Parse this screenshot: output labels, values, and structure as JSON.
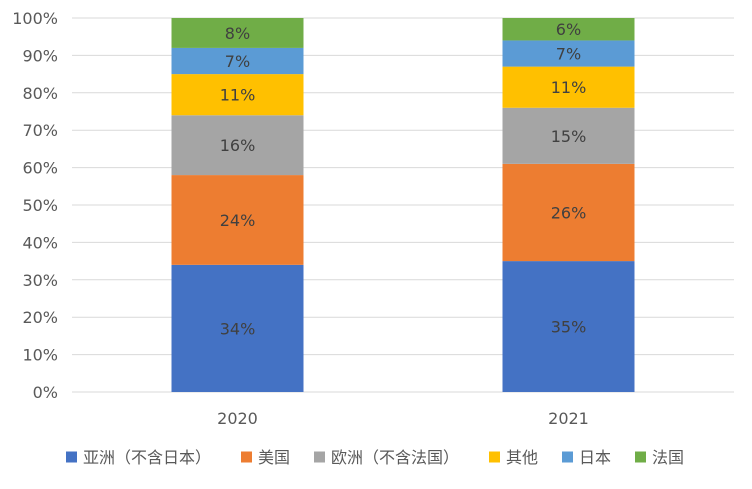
{
  "chart_data": {
    "type": "bar",
    "stacked": true,
    "percent": true,
    "categories": [
      "2020",
      "2021"
    ],
    "series": [
      {
        "name": "亚洲（不含日本）",
        "color": "#4472C4",
        "values": [
          34,
          35
        ]
      },
      {
        "name": "美国",
        "color": "#ED7D31",
        "values": [
          24,
          26
        ]
      },
      {
        "name": "欧洲（不含法国）",
        "color": "#A5A5A5",
        "values": [
          16,
          15
        ]
      },
      {
        "name": "其他",
        "color": "#FFC000",
        "values": [
          11,
          11
        ]
      },
      {
        "name": "日本",
        "color": "#5B9BD5",
        "values": [
          7,
          7
        ]
      },
      {
        "name": "法国",
        "color": "#70AD47",
        "values": [
          8,
          6
        ]
      }
    ],
    "data_labels": [
      [
        "34%",
        "35%"
      ],
      [
        "24%",
        "26%"
      ],
      [
        "16%",
        "15%"
      ],
      [
        "11%",
        "11%"
      ],
      [
        "7%",
        "7%"
      ],
      [
        "8%",
        "6%"
      ]
    ],
    "y_ticks": [
      "0%",
      "10%",
      "20%",
      "30%",
      "40%",
      "50%",
      "60%",
      "70%",
      "80%",
      "90%",
      "100%"
    ],
    "ylim": [
      0,
      100
    ],
    "grid": true,
    "legend_position": "bottom",
    "title": "",
    "xlabel": "",
    "ylabel": ""
  }
}
